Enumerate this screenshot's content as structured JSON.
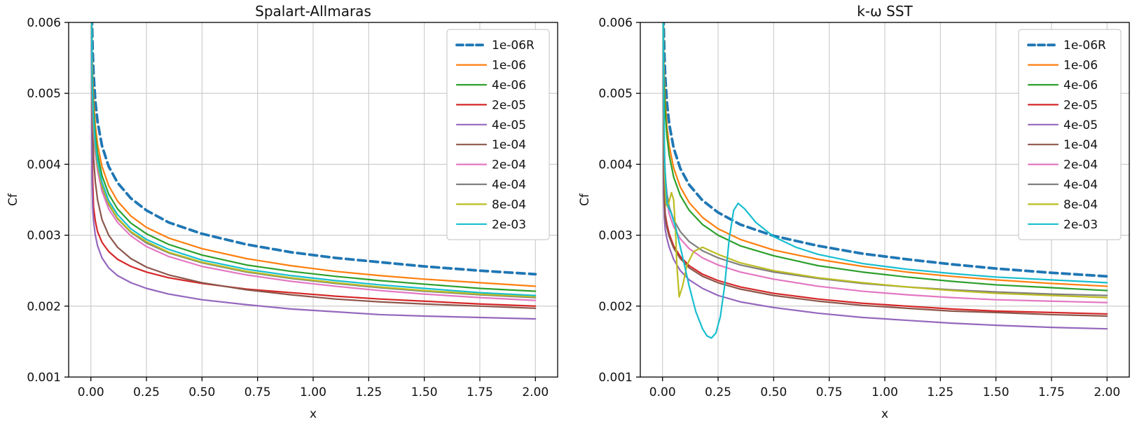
{
  "figure": {
    "background": "#ffffff",
    "text_color": "#111111",
    "grid_color": "#c9c9c9",
    "spine_color": "#000000",
    "legend_border_color": "#cccccc"
  },
  "chart_data": [
    {
      "type": "line",
      "title": "Spalart-Allmaras",
      "xlabel": "x",
      "ylabel": "Cf",
      "xlim": [
        -0.1,
        2.1
      ],
      "ylim": [
        0.001,
        0.006
      ],
      "grid": true,
      "legend_position": "upper right",
      "xticks": [
        0.0,
        0.25,
        0.5,
        0.75,
        1.0,
        1.25,
        1.5,
        1.75,
        2.0
      ],
      "xtick_labels": [
        "0.00",
        "0.25",
        "0.50",
        "0.75",
        "1.00",
        "1.25",
        "1.50",
        "1.75",
        "2.00"
      ],
      "yticks": [
        0.001,
        0.002,
        0.003,
        0.004,
        0.005,
        0.006
      ],
      "ytick_labels": [
        "0.001",
        "0.002",
        "0.003",
        "0.004",
        "0.005",
        "0.006"
      ],
      "x": [
        0.003,
        0.005,
        0.008,
        0.012,
        0.02,
        0.03,
        0.05,
        0.08,
        0.12,
        0.18,
        0.25,
        0.35,
        0.5,
        0.7,
        0.9,
        1.1,
        1.3,
        1.5,
        1.75,
        2.0
      ],
      "series": [
        {
          "name": "1e-06R",
          "color": "#1f77b4",
          "dash": true,
          "width": 3.8,
          "y": [
            0.0066,
            0.00602,
            0.00561,
            0.00528,
            0.00489,
            0.0046,
            0.00426,
            0.00397,
            0.00374,
            0.00352,
            0.00335,
            0.00318,
            0.00302,
            0.00287,
            0.00276,
            0.00268,
            0.00262,
            0.00256,
            0.0025,
            0.00245
          ]
        },
        {
          "name": "1e-06",
          "color": "#ff7f0e",
          "y": [
            0.0065,
            0.0056,
            0.00522,
            0.00491,
            0.00455,
            0.00428,
            0.00397,
            0.0037,
            0.00348,
            0.00327,
            0.00311,
            0.00296,
            0.00281,
            0.00267,
            0.00257,
            0.00249,
            0.00243,
            0.00238,
            0.00233,
            0.00228
          ]
        },
        {
          "name": "4e-06",
          "color": "#2ca02c",
          "y": [
            0.0064,
            0.00542,
            0.00505,
            0.00476,
            0.00441,
            0.00415,
            0.00384,
            0.00358,
            0.00337,
            0.00317,
            0.00302,
            0.00287,
            0.00272,
            0.00258,
            0.00249,
            0.00242,
            0.00236,
            0.00231,
            0.00225,
            0.00221
          ]
        },
        {
          "name": "2e-05",
          "color": "#d62728",
          "y": [
            0.006,
            0.0045,
            0.0038,
            0.0034,
            0.0032,
            0.00305,
            0.0029,
            0.00277,
            0.00266,
            0.00256,
            0.00248,
            0.0024,
            0.00232,
            0.00224,
            0.00219,
            0.00214,
            0.0021,
            0.00207,
            0.00203,
            0.002
          ]
        },
        {
          "name": "4e-05",
          "color": "#9467bd",
          "y": [
            0.0058,
            0.0038,
            0.0034,
            0.0032,
            0.003,
            0.00285,
            0.00268,
            0.00254,
            0.00243,
            0.00233,
            0.00225,
            0.00217,
            0.00209,
            0.00202,
            0.00196,
            0.00192,
            0.00188,
            0.00186,
            0.00184,
            0.00182
          ]
        },
        {
          "name": "1e-04",
          "color": "#8c564b",
          "y": [
            0.0062,
            0.005,
            0.0045,
            0.0041,
            0.00375,
            0.0035,
            0.00322,
            0.003,
            0.00283,
            0.00267,
            0.00255,
            0.00244,
            0.00233,
            0.00223,
            0.00216,
            0.0021,
            0.00206,
            0.00203,
            0.002,
            0.00197
          ]
        },
        {
          "name": "2e-04",
          "color": "#e377c2",
          "y": [
            0.0063,
            0.00511,
            0.00477,
            0.00448,
            0.00415,
            0.00391,
            0.00362,
            0.00337,
            0.00318,
            0.00299,
            0.00284,
            0.0027,
            0.00256,
            0.00244,
            0.00235,
            0.00228,
            0.00222,
            0.00217,
            0.00212,
            0.00208
          ]
        },
        {
          "name": "4e-04",
          "color": "#7f7f7f",
          "y": [
            0.0064,
            0.0052,
            0.00485,
            0.00456,
            0.00423,
            0.00398,
            0.00368,
            0.00343,
            0.00323,
            0.00304,
            0.00289,
            0.00275,
            0.00261,
            0.00248,
            0.00239,
            0.00232,
            0.00226,
            0.00221,
            0.00216,
            0.00212
          ]
        },
        {
          "name": "8e-04",
          "color": "#bcbd22",
          "y": [
            0.0064,
            0.00522,
            0.00487,
            0.00458,
            0.00424,
            0.00399,
            0.0037,
            0.00345,
            0.00324,
            0.00305,
            0.00291,
            0.00276,
            0.00262,
            0.00249,
            0.0024,
            0.00233,
            0.00227,
            0.00222,
            0.00217,
            0.00213
          ]
        },
        {
          "name": "2e-03",
          "color": "#17becf",
          "y": [
            0.0065,
            0.00529,
            0.00493,
            0.00464,
            0.0043,
            0.00404,
            0.00375,
            0.00349,
            0.00329,
            0.00309,
            0.00294,
            0.0028,
            0.00265,
            0.00252,
            0.00243,
            0.00236,
            0.0023,
            0.00225,
            0.00219,
            0.00215
          ]
        }
      ]
    },
    {
      "type": "line",
      "title": "k-ω SST",
      "xlabel": "x",
      "ylabel": "Cf",
      "xlim": [
        -0.1,
        2.1
      ],
      "ylim": [
        0.001,
        0.006
      ],
      "grid": true,
      "legend_position": "upper right",
      "xticks": [
        0.0,
        0.25,
        0.5,
        0.75,
        1.0,
        1.25,
        1.5,
        1.75,
        2.0
      ],
      "xtick_labels": [
        "0.00",
        "0.25",
        "0.50",
        "0.75",
        "1.00",
        "1.25",
        "1.50",
        "1.75",
        "2.00"
      ],
      "yticks": [
        0.001,
        0.002,
        0.003,
        0.004,
        0.005,
        0.006
      ],
      "ytick_labels": [
        "0.001",
        "0.002",
        "0.003",
        "0.004",
        "0.005",
        "0.006"
      ],
      "x": [
        0.003,
        0.005,
        0.008,
        0.012,
        0.02,
        0.03,
        0.05,
        0.08,
        0.12,
        0.18,
        0.25,
        0.35,
        0.5,
        0.7,
        0.9,
        1.1,
        1.3,
        1.5,
        1.75,
        2.0
      ],
      "series": [
        {
          "name": "1e-06R",
          "color": "#1f77b4",
          "dash": true,
          "width": 3.8,
          "y": [
            0.0066,
            0.006,
            0.00558,
            0.00525,
            0.00486,
            0.00457,
            0.00423,
            0.00394,
            0.00371,
            0.00349,
            0.00332,
            0.00315,
            0.00299,
            0.00285,
            0.00274,
            0.00266,
            0.00259,
            0.00253,
            0.00247,
            0.00242
          ]
        },
        {
          "name": "1e-06",
          "color": "#ff7f0e",
          "y": [
            0.0065,
            0.00558,
            0.0052,
            0.00489,
            0.00453,
            0.00426,
            0.00395,
            0.00368,
            0.00346,
            0.00325,
            0.00309,
            0.00294,
            0.00279,
            0.00266,
            0.00256,
            0.00248,
            0.00242,
            0.00237,
            0.00232,
            0.00228
          ]
        },
        {
          "name": "4e-06",
          "color": "#2ca02c",
          "y": [
            0.0064,
            0.0054,
            0.00503,
            0.00474,
            0.00439,
            0.00413,
            0.00382,
            0.00356,
            0.00335,
            0.00315,
            0.003,
            0.00285,
            0.00271,
            0.00257,
            0.00248,
            0.00241,
            0.00235,
            0.0023,
            0.00226,
            0.00222
          ]
        },
        {
          "name": "2e-05",
          "color": "#d62728",
          "y": [
            0.0058,
            0.0042,
            0.0036,
            0.0033,
            0.00315,
            0.00302,
            0.00285,
            0.0027,
            0.00257,
            0.00245,
            0.00236,
            0.00227,
            0.00218,
            0.0021,
            0.00204,
            0.002,
            0.00196,
            0.00193,
            0.00191,
            0.00189
          ]
        },
        {
          "name": "4e-05",
          "color": "#9467bd",
          "y": [
            0.0055,
            0.0036,
            0.00325,
            0.00308,
            0.00295,
            0.00283,
            0.00266,
            0.0025,
            0.00237,
            0.00225,
            0.00215,
            0.00206,
            0.00198,
            0.0019,
            0.00184,
            0.0018,
            0.00176,
            0.00173,
            0.0017,
            0.00168
          ]
        },
        {
          "name": "1e-04",
          "color": "#8c564b",
          "y": [
            0.0057,
            0.004,
            0.0035,
            0.00325,
            0.0031,
            0.00298,
            0.00282,
            0.00267,
            0.00254,
            0.00242,
            0.00233,
            0.00224,
            0.00215,
            0.00207,
            0.00201,
            0.00197,
            0.00193,
            0.00191,
            0.00188,
            0.00186
          ]
        },
        {
          "name": "2e-04",
          "color": "#e377c2",
          "y": [
            0.0061,
            0.00465,
            0.0041,
            0.00375,
            0.00348,
            0.0033,
            0.00312,
            0.00295,
            0.00281,
            0.00268,
            0.00258,
            0.00248,
            0.00238,
            0.00228,
            0.00221,
            0.00216,
            0.00212,
            0.00209,
            0.00207,
            0.00205
          ]
        },
        {
          "name": "4e-04",
          "color": "#7f7f7f",
          "y": [
            0.0062,
            0.0048,
            0.0042,
            0.00385,
            0.00358,
            0.0034,
            0.00322,
            0.00305,
            0.00291,
            0.00278,
            0.00268,
            0.00258,
            0.00248,
            0.00239,
            0.00232,
            0.00227,
            0.00223,
            0.0022,
            0.00217,
            0.00215
          ]
        },
        {
          "name": "8e-04",
          "color": "#bcbd22",
          "x": [
            0.003,
            0.006,
            0.01,
            0.015,
            0.022,
            0.03,
            0.04,
            0.05,
            0.058,
            0.065,
            0.075,
            0.09,
            0.11,
            0.14,
            0.18,
            0.25,
            0.35,
            0.5,
            0.7,
            0.9,
            1.1,
            1.3,
            1.5,
            1.75,
            2.0
          ],
          "y": [
            0.006,
            0.0046,
            0.00385,
            0.00345,
            0.0034,
            0.00348,
            0.0036,
            0.0035,
            0.0031,
            0.00255,
            0.00213,
            0.00228,
            0.00258,
            0.00277,
            0.00283,
            0.00273,
            0.00261,
            0.0025,
            0.0024,
            0.00233,
            0.00227,
            0.00222,
            0.00218,
            0.00215,
            0.00212
          ]
        },
        {
          "name": "2e-03",
          "color": "#17becf",
          "x": [
            0.003,
            0.006,
            0.01,
            0.02,
            0.04,
            0.06,
            0.09,
            0.12,
            0.15,
            0.18,
            0.2,
            0.22,
            0.24,
            0.26,
            0.28,
            0.3,
            0.32,
            0.34,
            0.37,
            0.42,
            0.5,
            0.6,
            0.7,
            0.9,
            1.1,
            1.3,
            1.5,
            1.75,
            2.0
          ],
          "y": [
            0.006,
            0.0048,
            0.004,
            0.00345,
            0.0033,
            0.0031,
            0.0027,
            0.00228,
            0.00192,
            0.00168,
            0.00158,
            0.00155,
            0.00162,
            0.00185,
            0.0023,
            0.00295,
            0.00335,
            0.00345,
            0.00337,
            0.00318,
            0.00298,
            0.00283,
            0.00273,
            0.0026,
            0.00252,
            0.00246,
            0.00241,
            0.00237,
            0.00233
          ]
        }
      ]
    }
  ]
}
